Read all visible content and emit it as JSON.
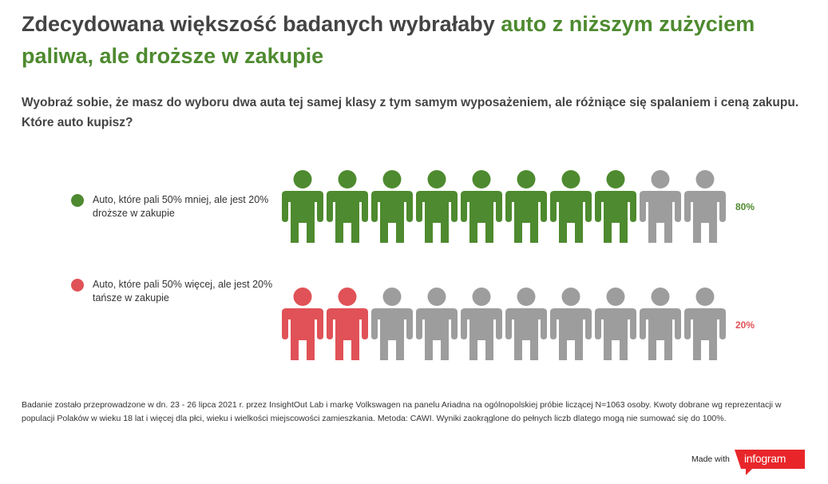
{
  "title": {
    "part1": "Zdecydowana większość badanych wybrałaby ",
    "part2": "auto z niższym zużyciem paliwa, ale droższe w zakupie"
  },
  "question": "Wyobraź sobie, że masz do wyboru dwa auta tej samej klasy z tym samym wyposażeniem, ale różniące się spalaniem i ceną zakupu. Które auto kupisz?",
  "colors": {
    "green": "#4e8a2f",
    "red": "#e05257",
    "grey": "#9d9d9d",
    "text": "#444444"
  },
  "chart_data": {
    "type": "pictogram",
    "icons_per_row": 10,
    "series": [
      {
        "name": "Auto, które pali 50% mniej, ale jest 20% droższe w zakupie",
        "value": 80,
        "value_label": "80%",
        "color": "#4e8a2f"
      },
      {
        "name": "Auto, które pali 50% więcej, ale jest 20% tańsze w zakupie",
        "value": 20,
        "value_label": "20%",
        "color": "#e05257"
      }
    ]
  },
  "footnote": "Badanie zostało przeprowadzone w dn. 23 - 26 lipca 2021 r. przez InsightOut Lab i markę Volkswagen na panelu Ariadna na ogólnopolskiej próbie liczącej N=1063 osoby. Kwoty dobrane wg reprezentacji w populacji Polaków w wieku 18 lat i więcej dla płci, wieku i wielkości miejscowości zamieszkania. Metoda: CAWI. Wyniki zaokrąglone do pełnych liczb dlatego mogą nie sumować się do 100%.",
  "branding": {
    "made_with": "Made with",
    "brand": "infogram"
  }
}
